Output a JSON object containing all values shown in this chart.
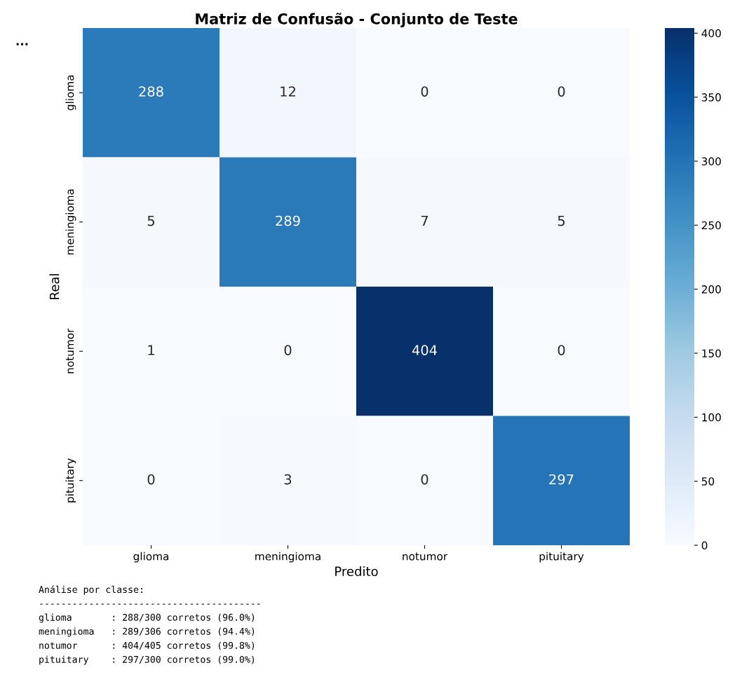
{
  "chart_data": {
    "type": "heatmap",
    "title": "Matriz de Confusão - Conjunto de Teste",
    "xlabel": "Predito",
    "ylabel": "Real",
    "categories": [
      "glioma",
      "meningioma",
      "notumor",
      "pituitary"
    ],
    "y_categories": [
      "glioma",
      "meningioma",
      "notumor",
      "pituitary"
    ],
    "cells": [
      [
        288,
        12,
        0,
        0
      ],
      [
        5,
        289,
        7,
        5
      ],
      [
        1,
        0,
        404,
        0
      ],
      [
        0,
        3,
        0,
        297
      ]
    ],
    "clim": [
      0,
      404
    ],
    "cticks": [
      0,
      50,
      100,
      150,
      200,
      250,
      300,
      350,
      400
    ],
    "data_labels": true,
    "grid": false,
    "legend": false,
    "annotations": [
      "...",
      "Análise por classe:",
      "----------------------------------------",
      "glioma       : 288/300 corretos (96.0%)",
      "meningioma   : 289/306 corretos (94.4%)",
      "notumor      : 404/405 corretos (99.8%)",
      "pituitary    : 297/300 corretos (99.0%)"
    ]
  }
}
